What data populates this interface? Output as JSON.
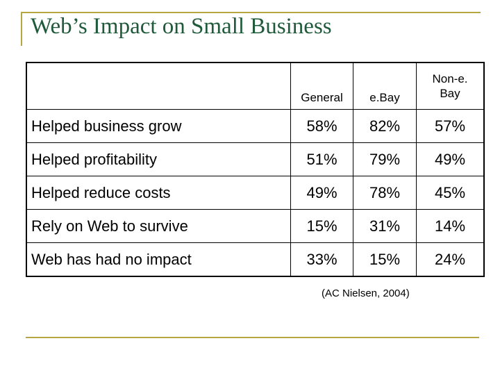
{
  "title": "Web’s Impact on Small Business",
  "table": {
    "headers": [
      "",
      "General",
      "e.Bay",
      "Non-e.Bay"
    ],
    "rows": [
      {
        "label": "Helped business grow",
        "values": [
          "58%",
          "82%",
          "57%"
        ]
      },
      {
        "label": "Helped profitability",
        "values": [
          "51%",
          "79%",
          "49%"
        ]
      },
      {
        "label": "Helped reduce costs",
        "values": [
          "49%",
          "78%",
          "45%"
        ]
      },
      {
        "label": "Rely on Web to survive",
        "values": [
          "15%",
          "31%",
          "14%"
        ]
      },
      {
        "label": "Web has had no impact",
        "values": [
          "33%",
          "15%",
          "24%"
        ]
      }
    ]
  },
  "citation": "(AC Nielsen, 2004)",
  "colors": {
    "accent_rule": "#b5a642",
    "title": "#1f5a3a"
  }
}
